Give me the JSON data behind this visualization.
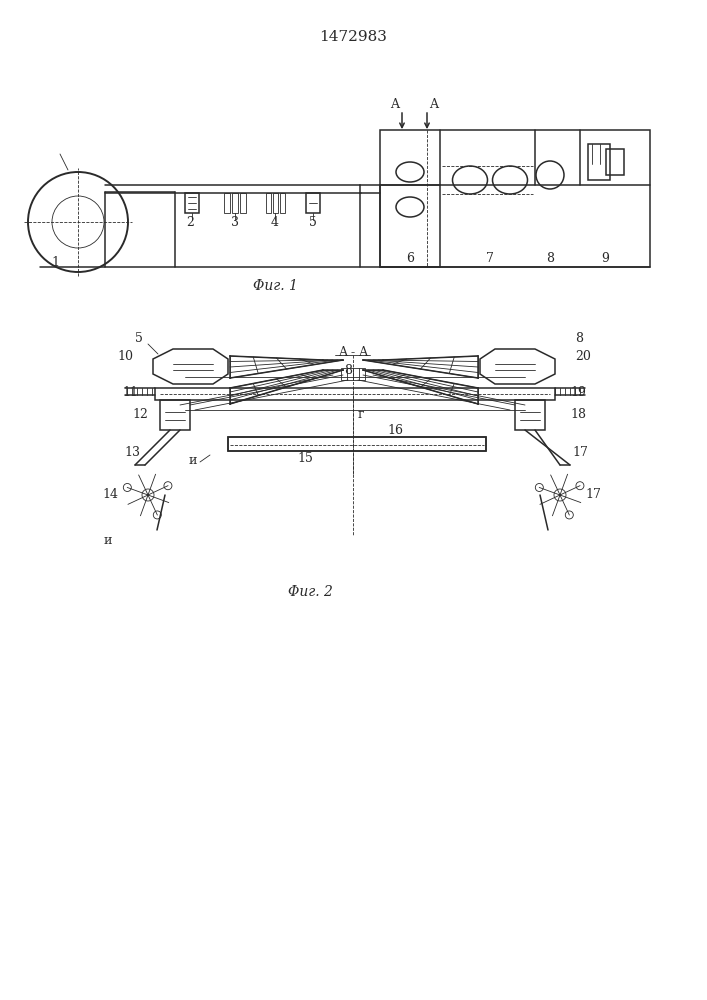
{
  "title": "1472983",
  "fig1_caption": "Φиг. 1",
  "fig2_caption": "Φиг. 2",
  "aa_label": "A - A",
  "bg_color": "#ffffff",
  "line_color": "#2a2a2a",
  "line_width": 1.1,
  "thin_line": 0.6,
  "thick_line": 1.8
}
